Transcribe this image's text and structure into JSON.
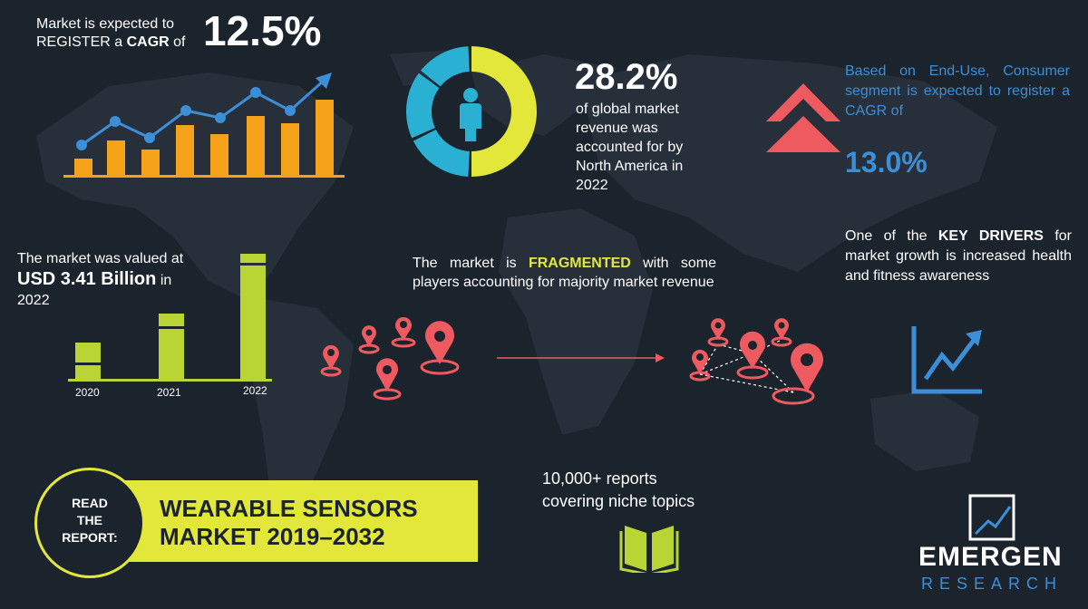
{
  "cagr_block": {
    "line1": "Market is expected to",
    "line2_prefix": "REGISTER a ",
    "line2_bold": "CAGR",
    "line2_suffix": " of",
    "value": "12.5%"
  },
  "north_america": {
    "value": "28.2%",
    "text": "of global market revenue was accounted for by North America in 2022",
    "share_percent": 28.2
  },
  "end_use": {
    "text": "Based on End-Use, Consumer segment is expected to register a CAGR of",
    "value": "13.0%"
  },
  "valuation": {
    "line1": "The market was valued at",
    "bold": "USD 3.41 Billion",
    "suffix": " in",
    "year": "2022",
    "bar_labels": [
      "2020",
      "2021",
      "2022"
    ]
  },
  "fragmented": {
    "prefix": "The market is ",
    "highlight": "FRAGMENTED",
    "suffix": " with some players accounting for majority market revenue"
  },
  "drivers": {
    "prefix": "One of the ",
    "bold": "KEY DRIVERS",
    "suffix": " for market growth is increased health and fitness awareness"
  },
  "report": {
    "badge": [
      "READ",
      "THE",
      "REPORT:"
    ],
    "title_line1": "WEARABLE SENSORS",
    "title_line2": "MARKET 2019–2032"
  },
  "reports_count": {
    "line1": "10,000+ reports",
    "line2": "covering niche topics"
  },
  "brand": {
    "name": "EMERGEN",
    "sub": "RESEARCH"
  },
  "colors": {
    "background": "#1b232d",
    "orange": "#f7a21b",
    "blue": "#3c8fd6",
    "yellow": "#e2e73a",
    "teal": "#2ab0d2",
    "coral": "#ee5a5f",
    "green": "#b8d435"
  }
}
